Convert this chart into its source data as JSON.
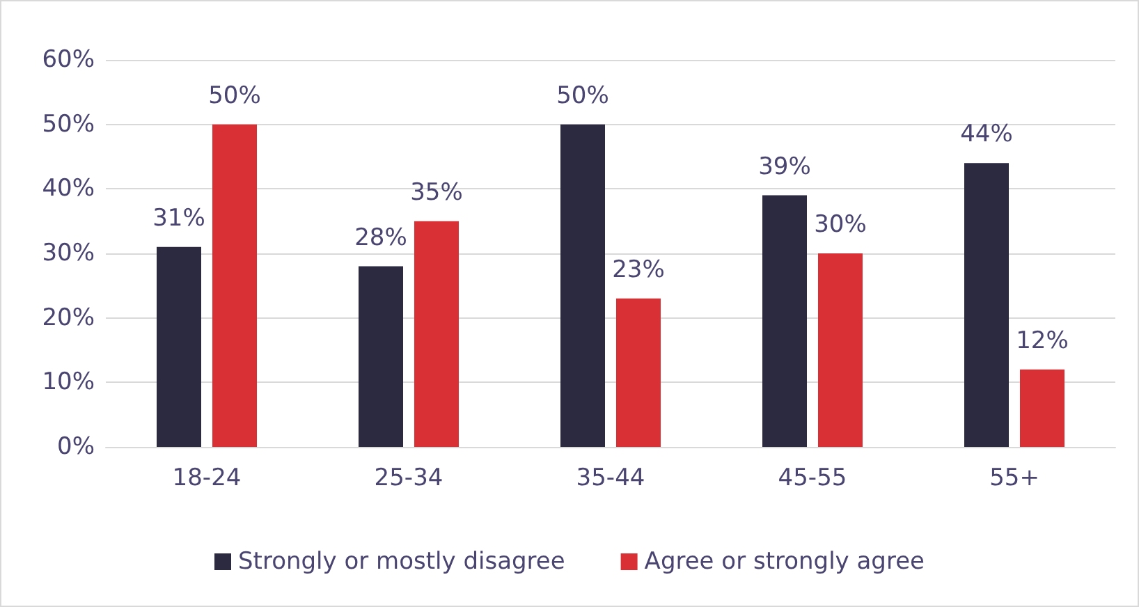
{
  "chart_data": {
    "type": "bar",
    "categories": [
      "18-24",
      "25-34",
      "35-44",
      "45-55",
      "55+"
    ],
    "series": [
      {
        "name": "Strongly or mostly disagree",
        "color": "#2b2a40",
        "values": [
          31,
          28,
          50,
          39,
          44
        ]
      },
      {
        "name": "Agree or strongly agree",
        "color": "#d93035",
        "values": [
          50,
          35,
          23,
          30,
          12
        ]
      }
    ],
    "ylim": [
      0,
      60
    ],
    "yticks": [
      {
        "value": 0,
        "label": "0%"
      },
      {
        "value": 10,
        "label": "10%"
      },
      {
        "value": 20,
        "label": "20%"
      },
      {
        "value": 30,
        "label": "30%"
      },
      {
        "value": 40,
        "label": "40%"
      },
      {
        "value": 50,
        "label": "50%"
      },
      {
        "value": 60,
        "label": "60%"
      }
    ],
    "value_labels": [
      [
        "31%",
        "28%",
        "50%",
        "39%",
        "44%"
      ],
      [
        "50%",
        "35%",
        "23%",
        "30%",
        "12%"
      ]
    ],
    "grid": "y",
    "legend": "bottom"
  }
}
